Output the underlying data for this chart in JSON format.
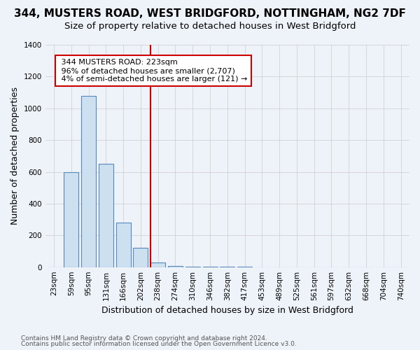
{
  "title": "344, MUSTERS ROAD, WEST BRIDGFORD, NOTTINGHAM, NG2 7DF",
  "subtitle": "Size of property relative to detached houses in West Bridgford",
  "xlabel": "Distribution of detached houses by size in West Bridgford",
  "ylabel": "Number of detached properties",
  "footnote1": "Contains HM Land Registry data © Crown copyright and database right 2024.",
  "footnote2": "Contains public sector information licensed under the Open Government Licence v3.0.",
  "bins": [
    "23sqm",
    "59sqm",
    "95sqm",
    "131sqm",
    "166sqm",
    "202sqm",
    "238sqm",
    "274sqm",
    "310sqm",
    "346sqm",
    "382sqm",
    "417sqm",
    "453sqm",
    "489sqm",
    "525sqm",
    "561sqm",
    "597sqm",
    "632sqm",
    "668sqm",
    "704sqm",
    "740sqm"
  ],
  "values": [
    0,
    600,
    1080,
    650,
    280,
    120,
    30,
    8,
    4,
    2,
    1,
    1,
    0,
    0,
    0,
    0,
    0,
    0,
    0,
    0,
    0
  ],
  "bar_color": "#cce0f0",
  "bar_edge_color": "#5588bb",
  "red_line_x": 5.58,
  "annotation_line1": "344 MUSTERS ROAD: 223sqm",
  "annotation_line2": "96% of detached houses are smaller (2,707)",
  "annotation_line3": "4% of semi-detached houses are larger (121) →",
  "ylim": [
    0,
    1400
  ],
  "yticks": [
    0,
    200,
    400,
    600,
    800,
    1000,
    1200,
    1400
  ],
  "background_color": "#eef2f9",
  "annotation_box_facecolor": "#ffffff",
  "annotation_border_color": "#cc0000",
  "red_line_color": "#cc0000",
  "title_fontsize": 11,
  "subtitle_fontsize": 9.5,
  "axis_label_fontsize": 9,
  "tick_fontsize": 7.5,
  "annotation_fontsize": 8,
  "footnote_fontsize": 6.5
}
